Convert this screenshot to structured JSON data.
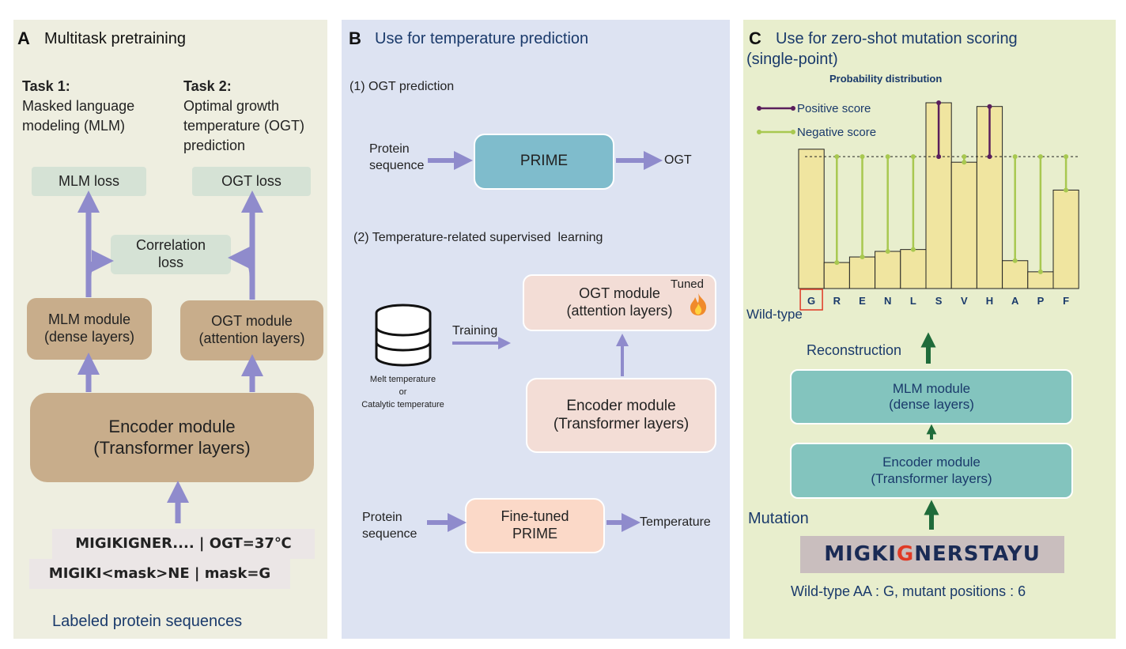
{
  "colors": {
    "panel_a": "#eeeee0",
    "panel_b": "#dde3f2",
    "panel_c": "#e8eecd",
    "arrow_purple": "#8f8bcc",
    "arrow_green": "#1f6b3a",
    "loss_box": "#d5e2d5",
    "module_tan": "#c8ad8b",
    "prime_teal": "#7fbccc",
    "pink_box": "#f3ddd6",
    "finetuned_box": "#fbd9c8",
    "teal_module": "#83c4be",
    "seq_box": "#c9bebe",
    "bar_fill": "#f0e5a0",
    "pos_score": "#5a1e5c",
    "neg_score": "#a8c850",
    "title_blue": "#1a3a6b",
    "mutation_red": "#e03a25"
  },
  "panel_a": {
    "letter": "A",
    "title": "Multitask pretraining",
    "task1_heading": "Task 1:",
    "task1_line1": "Masked language",
    "task1_line2": "modeling (MLM)",
    "task2_heading": "Task 2:",
    "task2_line1": "Optimal growth",
    "task2_line2": "temperature (OGT)",
    "task2_line3": "prediction",
    "mlm_loss": "MLM loss",
    "ogt_loss": "OGT loss",
    "corr_line1": "Correlation",
    "corr_line2": "loss",
    "mlm_module_line1": "MLM module",
    "mlm_module_line2": "(dense layers)",
    "ogt_module_line1": "OGT module",
    "ogt_module_line2": "(attention layers)",
    "encoder_line1": "Encoder module",
    "encoder_line2": "(Transformer layers)",
    "seq1": "MIGIKIGNER.... | OGT=37℃",
    "seq2": "MIGIKI<mask>NE | mask=G",
    "footer": "Labeled protein sequences"
  },
  "panel_b": {
    "letter": "B",
    "title": "Use for temperature prediction",
    "sub1": "(1) OGT prediction",
    "protein_line1": "Protein",
    "protein_line2": "sequence",
    "prime": "PRIME",
    "ogt": "OGT",
    "sub2": "(2) Temperature-related supervised  learning",
    "db_line1": "Melt temperature",
    "db_line2": "or",
    "db_line3": "Catalytic temperature",
    "training": "Training",
    "ogt_module_line1": "OGT module",
    "ogt_module_line2": "(attention layers)",
    "tuned": "Tuned",
    "encoder_line1": "Encoder module",
    "encoder_line2": "(Transformer layers)",
    "protein2_line1": "Protein",
    "protein2_line2": "sequence",
    "finetuned_line1": "Fine-tuned",
    "finetuned_line2": "PRIME",
    "temperature": "Temperature"
  },
  "panel_c": {
    "letter": "C",
    "title_line1": "Use for zero-shot mutation scoring",
    "title_line2": "(single-point)",
    "wild_type": "Wild-type",
    "reconstruction": "Reconstruction",
    "mlm_line1": "MLM module",
    "mlm_line2": "(dense layers)",
    "encoder_line1": "Encoder module",
    "encoder_line2": "(Transformer layers)",
    "mutation": "Mutation",
    "seq_prefix": "MIGKI",
    "seq_mut": "G",
    "seq_suffix": "NERSTAYU",
    "footer": "Wild-type AA : G, mutant positions : 6"
  },
  "chart_data": {
    "type": "bar",
    "title": "Probability distribution",
    "categories": [
      "G",
      "R",
      "E",
      "N",
      "L",
      "S",
      "V",
      "H",
      "A",
      "P",
      "F"
    ],
    "values": [
      0.75,
      0.14,
      0.17,
      0.2,
      0.21,
      1.0,
      0.68,
      0.98,
      0.15,
      0.09,
      0.53
    ],
    "reference": 0.71,
    "highlight_category": "G",
    "legend": [
      "Positive score",
      "Negative score"
    ],
    "ylim": [
      0,
      1.0
    ]
  }
}
